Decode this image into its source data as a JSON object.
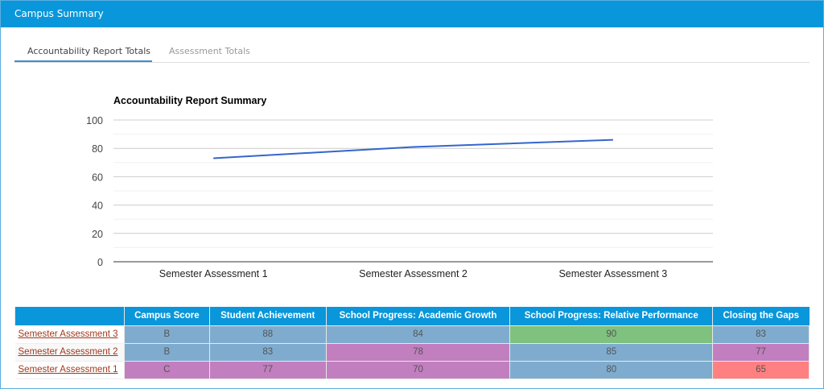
{
  "header": {
    "title": "Campus Summary"
  },
  "tabs": [
    {
      "label": "Accountability Report Totals",
      "active": true
    },
    {
      "label": "Assessment Totals",
      "active": false
    }
  ],
  "chart_data": {
    "type": "line",
    "title": "Accountability Report Summary",
    "categories": [
      "Semester Assessment 1",
      "Semester Assessment 2",
      "Semester Assessment 3"
    ],
    "series": [
      {
        "values": [
          73,
          81,
          86
        ],
        "color": "#3366cc"
      }
    ],
    "ylim": [
      0,
      100
    ],
    "yticks": [
      0,
      20,
      40,
      60,
      80,
      100
    ],
    "grid": true,
    "xlabel": "",
    "ylabel": ""
  },
  "table": {
    "columns": [
      "",
      "Campus Score",
      "Student Achievement",
      "School Progress: Academic Growth",
      "School Progress: Relative Performance",
      "Closing the Gaps"
    ],
    "rows": [
      {
        "label": "Semester Assessment 3",
        "cells": [
          "B",
          "88",
          "84",
          "90",
          "83"
        ],
        "colors": [
          "#7facce",
          "#7facce",
          "#7facce",
          "#7fc17f",
          "#7facce"
        ]
      },
      {
        "label": "Semester Assessment 2",
        "cells": [
          "B",
          "83",
          "78",
          "85",
          "77"
        ],
        "colors": [
          "#7facce",
          "#7facce",
          "#c17fbf",
          "#7facce",
          "#c17fbf"
        ]
      },
      {
        "label": "Semester Assessment 1",
        "cells": [
          "C",
          "77",
          "70",
          "80",
          "65"
        ],
        "colors": [
          "#c17fbf",
          "#c17fbf",
          "#c17fbf",
          "#7facce",
          "#ff8080"
        ]
      }
    ]
  }
}
